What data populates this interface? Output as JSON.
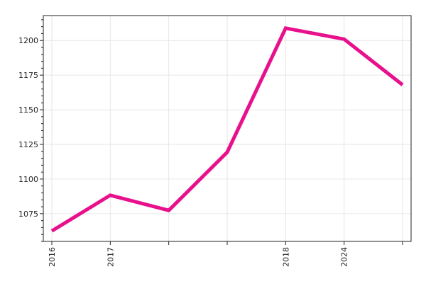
{
  "chart_data": {
    "type": "line",
    "title": "",
    "xlabel": "",
    "ylabel": "",
    "x_tick_labels": [
      "2016",
      "2017",
      "",
      "",
      "2018",
      "2024",
      ""
    ],
    "series": [
      {
        "color": "#e8108c",
        "values": [
          1062.5,
          1088.3,
          1077.4,
          1119.4,
          1208.9,
          1201.0,
          1168.0
        ]
      }
    ],
    "ylim": [
      1055,
      1218
    ],
    "y_ticks": [
      1075,
      1100,
      1125,
      1150,
      1175,
      1200
    ],
    "y_tick_labels": [
      "1075",
      "1100",
      "1125",
      "1150",
      "1175",
      "1200"
    ],
    "y_minor_step": 5,
    "grid": true,
    "legend": "none"
  }
}
